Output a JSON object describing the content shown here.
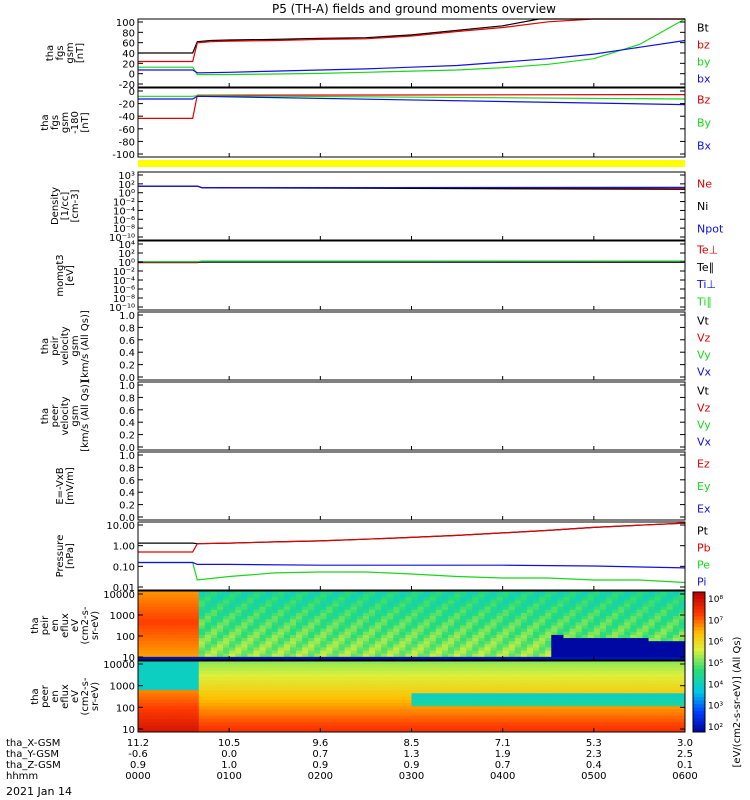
{
  "title": "P5 (TH-A) fields and ground moments overview",
  "date_label": "2021 Jan 14",
  "colors": {
    "black": "#000000",
    "red": "#e00000",
    "green": "#18d818",
    "blue": "#1010e0",
    "yellow": "#ffff00"
  },
  "chart_data": [
    {
      "type": "line",
      "id": "fgs_mag",
      "ylabel": [
        "tha",
        "fgs",
        "gsm",
        "[nT]"
      ],
      "ylim": [
        -20,
        100
      ],
      "yticks": [
        "100",
        "80",
        "60",
        "40",
        "20",
        "0",
        "-20"
      ],
      "series": [
        {
          "name": "Bt",
          "color": "black",
          "x": [
            0,
            0.2,
            0.4,
            0.6,
            0.65,
            0.8,
            1,
            1.5,
            2,
            2.5,
            3,
            3.5,
            4,
            4.4,
            5,
            6
          ],
          "y": [
            40,
            40,
            40,
            40,
            60,
            62,
            63,
            64,
            66,
            67,
            72,
            80,
            88,
            100,
            100,
            100
          ]
        },
        {
          "name": "bz",
          "color": "red",
          "x": [
            0,
            0.2,
            0.4,
            0.6,
            0.65,
            0.8,
            1,
            1.5,
            2,
            2.5,
            3,
            3.5,
            4,
            4.5,
            5,
            6
          ],
          "y": [
            25,
            25,
            25,
            25,
            58,
            60,
            61,
            62,
            64,
            65,
            70,
            78,
            85,
            95,
            100,
            100
          ]
        },
        {
          "name": "by",
          "color": "green",
          "x": [
            0,
            0.6,
            0.65,
            1,
            1.5,
            2,
            2.5,
            3,
            3.5,
            4,
            4.5,
            5,
            5.5,
            6
          ],
          "y": [
            15,
            15,
            2,
            2,
            3,
            4,
            6,
            8,
            10,
            14,
            20,
            30,
            55,
            100
          ]
        },
        {
          "name": "bx",
          "color": "blue",
          "x": [
            0,
            0.6,
            0.65,
            1,
            1.5,
            2,
            2.5,
            3,
            3.5,
            4,
            4.5,
            5,
            5.5,
            6
          ],
          "y": [
            10,
            10,
            5,
            6,
            8,
            10,
            12,
            15,
            18,
            24,
            30,
            38,
            50,
            62
          ]
        }
      ]
    },
    {
      "type": "line",
      "id": "fgs_120",
      "ylabel": [
        "tha",
        "fgs",
        "gsm",
        "-180",
        "[nT]"
      ],
      "ylim": [
        -110,
        15
      ],
      "yticks": [
        "0",
        "-20",
        "-40",
        "-60",
        "-80",
        "-100"
      ],
      "series": [
        {
          "name": "Bz",
          "color": "red",
          "x": [
            0,
            0.6,
            0.65,
            6
          ],
          "y": [
            -40,
            -40,
            2,
            3
          ]
        },
        {
          "name": "By",
          "color": "green",
          "x": [
            0,
            0.6,
            0.65,
            6
          ],
          "y": [
            0,
            0,
            1,
            -5
          ]
        },
        {
          "name": "Bx",
          "color": "blue",
          "x": [
            0,
            0.6,
            0.65,
            6
          ],
          "y": [
            -5,
            -5,
            0,
            -15
          ]
        }
      ]
    },
    {
      "type": "line",
      "id": "density",
      "ylabel": [
        "Density",
        "[1/cc]",
        "[cm-3]"
      ],
      "ylim_log10": [
        -10,
        3
      ],
      "yticks": [
        "10³",
        "10²",
        "10⁰",
        "10⁻²",
        "10⁻⁴",
        "10⁻⁶",
        "10⁻⁸",
        "10⁻¹⁰"
      ],
      "series": [
        {
          "name": "Ne",
          "color": "red",
          "x": [
            0,
            0.65,
            0.7,
            6
          ],
          "y": [
            2,
            2,
            1,
            0.8
          ]
        },
        {
          "name": "Ni",
          "color": "black",
          "x": [
            0,
            0.65,
            0.7,
            6
          ],
          "y": [
            2,
            2,
            1,
            0.5
          ]
        },
        {
          "name": "Npot",
          "color": "blue",
          "x": [
            0,
            0.65,
            0.7,
            6
          ],
          "y": [
            2,
            2,
            1,
            1.2
          ]
        }
      ]
    },
    {
      "type": "line",
      "id": "temperature",
      "ylabel": [
        "momgt3",
        "[eV]"
      ],
      "ylim_log10": [
        -10,
        5
      ],
      "yticks": [
        "10⁴",
        "10²",
        "10⁰",
        "10⁻²",
        "10⁻⁴",
        "10⁻⁶",
        "10⁻⁸",
        "10⁻¹⁰"
      ],
      "series": [
        {
          "name": "Te⊥",
          "color": "red",
          "x": [
            0,
            0.65,
            0.7,
            6
          ],
          "y": [
            2,
            2,
            3,
            2.5
          ]
        },
        {
          "name": "Te∥",
          "color": "black",
          "x": [
            0,
            6
          ],
          "y": [
            2.5,
            2.5
          ]
        },
        {
          "name": "Ti⊥",
          "color": "blue",
          "x": [
            0,
            0.65,
            0.7,
            6
          ],
          "y": [
            3,
            3,
            4,
            4
          ]
        },
        {
          "name": "Ti∥",
          "color": "green",
          "x": [
            0,
            0.65,
            0.7,
            6
          ],
          "y": [
            3,
            3,
            4,
            4
          ]
        }
      ]
    },
    {
      "type": "line",
      "id": "peir_velocity",
      "ylabel": [
        "tha",
        "peir",
        "velocity",
        "gsm",
        "[km/s (All Qs)]"
      ],
      "ylim": [
        0,
        1
      ],
      "yticks": [
        "1.0",
        "0.8",
        "0.6",
        "0.4",
        "0.2",
        "0.0"
      ],
      "series": [
        {
          "name": "Vt",
          "color": "black",
          "x": [],
          "y": []
        },
        {
          "name": "Vz",
          "color": "red",
          "x": [],
          "y": []
        },
        {
          "name": "Vy",
          "color": "green",
          "x": [],
          "y": []
        },
        {
          "name": "Vx",
          "color": "blue",
          "x": [],
          "y": []
        }
      ]
    },
    {
      "type": "line",
      "id": "peer_velocity",
      "ylabel": [
        "tha",
        "peer",
        "velocity",
        "gsm",
        "[km/s (All Qs)]"
      ],
      "ylim": [
        0,
        1
      ],
      "yticks": [
        "1.0",
        "0.8",
        "0.6",
        "0.4",
        "0.2",
        "0.0"
      ],
      "series": [
        {
          "name": "Vt",
          "color": "black",
          "x": [],
          "y": []
        },
        {
          "name": "Vz",
          "color": "red",
          "x": [],
          "y": []
        },
        {
          "name": "Vy",
          "color": "green",
          "x": [],
          "y": []
        },
        {
          "name": "Vx",
          "color": "blue",
          "x": [],
          "y": []
        }
      ]
    },
    {
      "type": "line",
      "id": "efield",
      "ylabel": [
        "E=-VxB",
        "[mV/m]"
      ],
      "ylim": [
        0,
        1
      ],
      "yticks": [
        "1.0",
        "0.8",
        "0.6",
        "0.4",
        "0.2",
        "0.0"
      ],
      "series": [
        {
          "name": "Ez",
          "color": "red",
          "x": [],
          "y": []
        },
        {
          "name": "Ey",
          "color": "green",
          "x": [],
          "y": []
        },
        {
          "name": "Ex",
          "color": "blue",
          "x": [],
          "y": []
        }
      ]
    },
    {
      "type": "line",
      "id": "pressure",
      "ylabel": [
        "Pressure",
        "[nPa]"
      ],
      "ylim_log10": [
        -2.2,
        1.2
      ],
      "yticks": [
        "10.00",
        "1.00",
        "0.10",
        "0.01"
      ],
      "series": [
        {
          "name": "Pt",
          "color": "black",
          "x": [
            0,
            0.6,
            0.65,
            1,
            1.5,
            2,
            2.5,
            3,
            3.5,
            4,
            4.5,
            5,
            5.5,
            6
          ],
          "y": [
            1.4,
            1.4,
            1.3,
            1.4,
            1.6,
            1.8,
            2.2,
            2.7,
            3.4,
            4.5,
            6,
            8.5,
            11,
            14
          ]
        },
        {
          "name": "Pb",
          "color": "red",
          "x": [
            0,
            0.6,
            0.65,
            1,
            1.5,
            2,
            2.5,
            3,
            3.5,
            4,
            4.5,
            5,
            5.5,
            6
          ],
          "y": [
            0.5,
            0.5,
            1.3,
            1.4,
            1.6,
            1.8,
            2.2,
            2.7,
            3.4,
            4.5,
            6,
            8.5,
            11,
            14
          ]
        },
        {
          "name": "Pe",
          "color": "green",
          "x": [
            0,
            0.6,
            0.65,
            1,
            1.5,
            2,
            2.5,
            3,
            3.5,
            4,
            4.5,
            5,
            5.5,
            6
          ],
          "y": [
            0.15,
            0.15,
            0.02,
            0.03,
            0.045,
            0.05,
            0.05,
            0.04,
            0.03,
            0.025,
            0.025,
            0.02,
            0.02,
            0.015
          ]
        },
        {
          "name": "Pi",
          "color": "blue",
          "x": [
            0,
            0.6,
            0.65,
            1,
            2,
            3,
            4,
            5,
            6
          ],
          "y": [
            0.15,
            0.15,
            0.12,
            0.12,
            0.11,
            0.11,
            0.11,
            0.1,
            0.08
          ]
        }
      ]
    },
    {
      "type": "heatmap",
      "id": "peir_spec",
      "ylabel": [
        "tha",
        "peir",
        "en",
        "eflux",
        "eV",
        "(cm2-s-",
        "sr-eV)"
      ],
      "yticks": [
        "10000",
        "1000",
        "100",
        "10"
      ]
    },
    {
      "type": "heatmap",
      "id": "peer_spec",
      "ylabel": [
        "tha",
        "peer",
        "en",
        "eflux",
        "eV",
        "(cm2-s-",
        "sr-eV)"
      ],
      "yticks": [
        "10000",
        "1000",
        "100",
        "10"
      ]
    }
  ],
  "colorbar": {
    "label": "[eV/(cm2-s-sr-eV)] (All Qs)",
    "ticks": [
      "10⁸",
      "10⁷",
      "10⁶",
      "10⁵",
      "10⁴",
      "10³",
      "10²"
    ]
  },
  "side_labels": {
    "fgs_mag": [
      {
        "text": "Bt",
        "color": "black"
      },
      {
        "text": "bz",
        "color": "red"
      },
      {
        "text": "by",
        "color": "green"
      },
      {
        "text": "bx",
        "color": "blue"
      }
    ],
    "fgs_120": [
      {
        "text": "Bz",
        "color": "red"
      },
      {
        "text": "By",
        "color": "green"
      },
      {
        "text": "Bx",
        "color": "blue"
      }
    ],
    "density": [
      {
        "text": "Ne",
        "color": "red"
      },
      {
        "text": "Ni",
        "color": "black"
      },
      {
        "text": "Npot",
        "color": "blue"
      }
    ],
    "temperature": [
      {
        "text": "Te⊥",
        "color": "red"
      },
      {
        "text": "Te∥",
        "color": "black"
      },
      {
        "text": "Ti⊥",
        "color": "blue"
      },
      {
        "text": "Ti∥",
        "color": "green"
      }
    ],
    "peir_velocity": [
      {
        "text": "Vt",
        "color": "black"
      },
      {
        "text": "Vz",
        "color": "red"
      },
      {
        "text": "Vy",
        "color": "green"
      },
      {
        "text": "Vx",
        "color": "blue"
      }
    ],
    "peer_velocity": [
      {
        "text": "Vt",
        "color": "black"
      },
      {
        "text": "Vz",
        "color": "red"
      },
      {
        "text": "Vy",
        "color": "green"
      },
      {
        "text": "Vx",
        "color": "blue"
      }
    ],
    "efield": [
      {
        "text": "Ez",
        "color": "red"
      },
      {
        "text": "Ey",
        "color": "green"
      },
      {
        "text": "Ex",
        "color": "blue"
      }
    ],
    "pressure": [
      {
        "text": "Pt",
        "color": "black"
      },
      {
        "text": "Pb",
        "color": "red"
      },
      {
        "text": "Pe",
        "color": "green"
      },
      {
        "text": "Pi",
        "color": "blue"
      }
    ]
  },
  "x_axis": {
    "rows": [
      {
        "label": "tha_X-GSM",
        "values": [
          "11.2",
          "10.5",
          "9.6",
          "8.5",
          "7.1",
          "5.3",
          "3.0"
        ]
      },
      {
        "label": "tha_Y-GSM",
        "values": [
          "-0.6",
          "0.0",
          "0.7",
          "1.3",
          "1.9",
          "2.3",
          "2.5"
        ]
      },
      {
        "label": "tha_Z-GSM",
        "values": [
          "0.9",
          "1.0",
          "0.9",
          "0.9",
          "0.7",
          "0.4",
          "0.1"
        ]
      },
      {
        "label": "hhmm",
        "values": [
          "0000",
          "0100",
          "0200",
          "0300",
          "0400",
          "0500",
          "0600"
        ]
      }
    ]
  }
}
